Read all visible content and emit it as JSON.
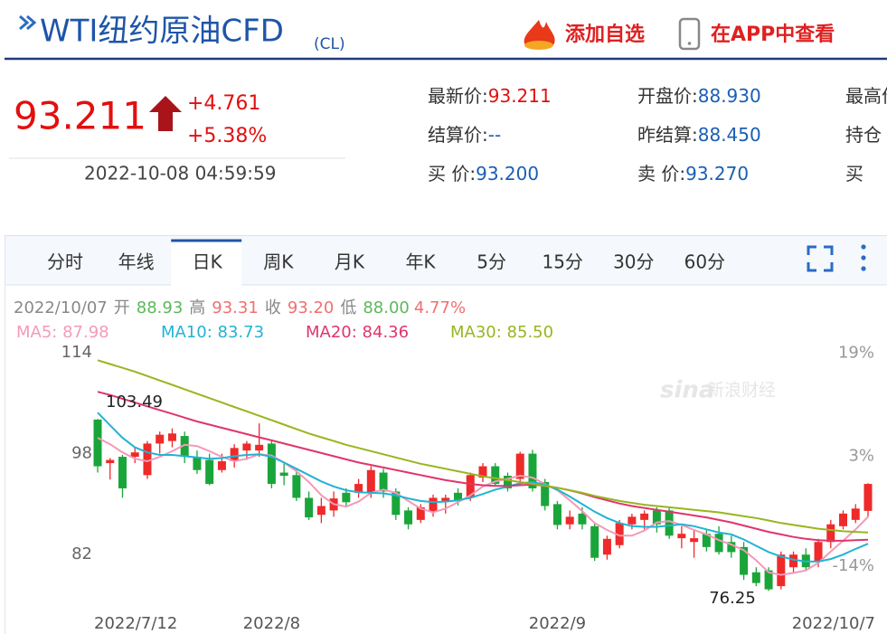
{
  "header": {
    "title": "WTI纽约原油CFD",
    "code": "(CL)",
    "add_watchlist": "添加自选",
    "view_in_app": "在APP中查看"
  },
  "quote": {
    "price": "93.211",
    "change": "+4.761",
    "change_pct": "+5.38%",
    "time": "2022-10-08 04:59:59",
    "fields": [
      [
        {
          "label": "最新价:",
          "value": "93.211"
        },
        {
          "label": "开盘价:",
          "value": "88.930"
        },
        {
          "label": "最高价"
        }
      ],
      [
        {
          "label": "结算价:",
          "value": "--"
        },
        {
          "label": "昨结算:",
          "value": "88.450"
        },
        {
          "label": "持仓"
        }
      ],
      [
        {
          "label": "买  价:",
          "value": "93.200"
        },
        {
          "label": "卖  价:",
          "value": "93.270"
        },
        {
          "label": "买"
        }
      ]
    ]
  },
  "tabs": [
    {
      "label": "分时",
      "selected": false
    },
    {
      "label": "年线",
      "selected": false
    },
    {
      "label": "日K",
      "selected": true
    },
    {
      "label": "周K",
      "selected": false
    },
    {
      "label": "月K",
      "selected": false
    },
    {
      "label": "年K",
      "selected": false
    },
    {
      "label": "5分",
      "selected": false
    },
    {
      "label": "15分",
      "selected": false
    },
    {
      "label": "30分",
      "selected": false
    },
    {
      "label": "60分",
      "selected": false
    }
  ],
  "chart_data": {
    "type": "candlestick",
    "info": {
      "date": "2022/10/07",
      "items": [
        {
          "label": "开",
          "value": "88.93",
          "color": "#5cb85c"
        },
        {
          "label": "高",
          "value": "93.31",
          "color": "#f07070"
        },
        {
          "label": "收",
          "value": "93.20",
          "color": "#f07070"
        },
        {
          "label": "低",
          "value": "88.00",
          "color": "#5cb85c"
        }
      ],
      "change_pct": "4.77%",
      "change_color": "#f07070"
    },
    "watermark": [
      "sina",
      "新浪财经"
    ],
    "ylim": [
      72,
      116
    ],
    "yticks": [
      114,
      98,
      82
    ],
    "y2lim": [
      -22,
      21
    ],
    "y2ticks": [
      {
        "value": 19,
        "label": "19%"
      },
      {
        "value": 3,
        "label": "3%"
      },
      {
        "value": -14,
        "label": "-14%"
      }
    ],
    "categories": [
      "2022/7/12",
      null,
      null,
      null,
      null,
      null,
      null,
      null,
      null,
      null,
      null,
      null,
      null,
      null,
      "2022/8",
      null,
      null,
      null,
      null,
      null,
      null,
      null,
      null,
      null,
      null,
      null,
      null,
      null,
      null,
      null,
      null,
      null,
      null,
      null,
      null,
      null,
      null,
      "2022/9",
      null,
      null,
      null,
      null,
      null,
      null,
      null,
      null,
      null,
      null,
      null,
      null,
      null,
      null,
      null,
      null,
      null,
      null,
      null,
      null,
      null,
      null,
      null,
      null,
      "2022/10/7"
    ],
    "up_color": "#ee2a2a",
    "down_color": "#1aa53a",
    "open": [
      103.4,
      96.5,
      97.5,
      97.5,
      94.6,
      99.6,
      100,
      100.8,
      97.5,
      97,
      95.4,
      96.8,
      98.5,
      98.5,
      99.6,
      95,
      94.6,
      91,
      88.3,
      89,
      91.8,
      91.8,
      91.8,
      95,
      92,
      89,
      87.5,
      88.8,
      90.5,
      91.8,
      91,
      94.2,
      96,
      94.5,
      94,
      98,
      93.5,
      90,
      86.8,
      88.5,
      86.5,
      82,
      83.5,
      86.8,
      87.5,
      89,
      89,
      84.6,
      84,
      85.3,
      85.3,
      84,
      83.2,
      79.2,
      79.5,
      77,
      80,
      82,
      81,
      84,
      86.5,
      87.5,
      88.93
    ],
    "high": [
      103.49,
      97.3,
      97.8,
      99,
      100,
      101.5,
      102,
      101.5,
      98.5,
      98,
      98,
      99.5,
      100,
      102.8,
      100,
      96.5,
      95.5,
      92,
      91,
      92,
      92.5,
      94,
      96,
      95.6,
      92.5,
      89.5,
      90,
      91.5,
      91.5,
      92.5,
      95,
      96.5,
      96.5,
      95,
      98.3,
      98.6,
      94,
      90.5,
      89,
      89.5,
      87,
      85,
      87.5,
      88.5,
      89,
      89.5,
      89.5,
      86.5,
      86,
      86,
      86.5,
      85,
      84,
      80,
      80,
      82.5,
      82.5,
      83,
      84.5,
      87.5,
      89,
      90,
      93.31
    ],
    "low": [
      95,
      93.9,
      91,
      96.5,
      94,
      98,
      99,
      96.5,
      94.8,
      93,
      95,
      95.8,
      97,
      97.5,
      92.5,
      93,
      90.5,
      87.5,
      87,
      88,
      89.5,
      91,
      91,
      91,
      87.5,
      86,
      87,
      88,
      88.5,
      89.8,
      90.5,
      93.5,
      92.8,
      92,
      93,
      92,
      89,
      86,
      86,
      86,
      81,
      81.2,
      83,
      86,
      86,
      85.5,
      84.5,
      83,
      81.5,
      82.5,
      82,
      81.5,
      78,
      77,
      76.25,
      76.5,
      79,
      79.5,
      80,
      83,
      86,
      87,
      88
    ],
    "close": [
      96,
      97,
      92.5,
      98.2,
      99.6,
      101,
      101.2,
      97.5,
      95.4,
      93.2,
      96.8,
      98.9,
      99.6,
      99.4,
      93.2,
      94.5,
      91,
      87.9,
      89.7,
      90.9,
      90.3,
      93.2,
      95.4,
      92,
      88.3,
      86.8,
      89.5,
      91,
      91,
      90.6,
      94.6,
      96,
      93.2,
      92.5,
      98,
      92.5,
      89.7,
      86.7,
      88,
      86.8,
      81.5,
      84.5,
      87,
      88,
      88.5,
      86.8,
      85,
      85.3,
      84.6,
      83.2,
      82.4,
      82.4,
      78.8,
      77.5,
      76.5,
      82,
      82,
      80,
      84,
      86.8,
      88.5,
      89.3,
      93.2
    ],
    "series": [
      {
        "label": "MA5: 87.98",
        "color": "#f39ab8",
        "values": [
          100.5,
          99.5,
          98.2,
          97.2,
          96.8,
          97.5,
          98.4,
          99.4,
          99.2,
          98.4,
          97.5,
          96.8,
          97.2,
          97.9,
          97.7,
          96.6,
          95.2,
          93.5,
          91.4,
          90,
          89.6,
          90.4,
          91.8,
          92.3,
          91.8,
          90.5,
          89.3,
          88.7,
          89.3,
          90.3,
          91.4,
          92.8,
          93.6,
          94,
          94.5,
          94.2,
          93.2,
          92.2,
          90.6,
          88.9,
          87,
          85.9,
          85,
          85,
          85.8,
          87.1,
          87.3,
          86.7,
          85.9,
          85.2,
          84.3,
          83.6,
          82.7,
          81.1,
          79.2,
          78.8,
          79.1,
          79.5,
          80.7,
          82.5,
          84.2,
          86,
          87.98
        ]
      },
      {
        "label": "MA10: 83.73",
        "color": "#22b3d3",
        "values": [
          104.5,
          102.5,
          100.5,
          99,
          98.2,
          97.8,
          97.8,
          97.6,
          97.4,
          97.2,
          97.3,
          97.6,
          97.8,
          97.9,
          97.5,
          96.6,
          95.6,
          94.6,
          93.6,
          92.8,
          92.2,
          91.9,
          91.8,
          91.7,
          91.4,
          90.9,
          90.5,
          90.3,
          90.4,
          90.6,
          91,
          91.6,
          92.3,
          92.8,
          93.3,
          93.5,
          93.1,
          92.3,
          91.2,
          90,
          88.8,
          87.8,
          87,
          86.5,
          86.4,
          86.4,
          86.6,
          86.8,
          86.5,
          86,
          85.5,
          85.2,
          84.4,
          83.4,
          82.4,
          81.7,
          81.2,
          80.9,
          80.9,
          81.3,
          82,
          82.9,
          83.73
        ]
      },
      {
        "label": "MA20: 84.36",
        "color": "#e0356b",
        "values": [
          107.8,
          107.3,
          106.7,
          106.1,
          105.5,
          104.9,
          104.3,
          103.7,
          103.1,
          102.6,
          102.1,
          101.6,
          101.1,
          100.6,
          100.1,
          99.6,
          99.1,
          98.6,
          98.1,
          97.6,
          97.1,
          96.6,
          96.2,
          95.8,
          95.4,
          95,
          94.6,
          94.2,
          93.8,
          93.5,
          93.2,
          93,
          92.9,
          92.9,
          93,
          93.1,
          92.9,
          92.6,
          92.2,
          91.7,
          91.1,
          90.6,
          90.1,
          89.7,
          89.4,
          89.1,
          88.8,
          88.5,
          88.2,
          87.9,
          87.5,
          87.1,
          86.6,
          86.1,
          85.6,
          85.2,
          84.8,
          84.5,
          84.3,
          84.2,
          84.2,
          84.3,
          84.36
        ]
      },
      {
        "label": "MA30: 85.50",
        "color": "#97b61f",
        "values": [
          112.8,
          112.2,
          111.6,
          111,
          110.3,
          109.6,
          108.9,
          108.2,
          107.5,
          106.8,
          106.1,
          105.4,
          104.7,
          104,
          103.3,
          102.6,
          101.9,
          101.2,
          100.6,
          100,
          99.4,
          98.9,
          98.4,
          97.9,
          97.4,
          96.9,
          96.4,
          96,
          95.6,
          95.2,
          94.8,
          94.4,
          94.1,
          93.8,
          93.5,
          93.2,
          92.9,
          92.6,
          92.2,
          91.8,
          91.3,
          90.9,
          90.5,
          90.2,
          89.9,
          89.7,
          89.5,
          89.3,
          89.1,
          88.9,
          88.7,
          88.4,
          88.1,
          87.8,
          87.4,
          87,
          86.7,
          86.4,
          86.1,
          85.9,
          85.7,
          85.6,
          85.5
        ]
      }
    ],
    "annotations": [
      {
        "text": "103.49"
      },
      {
        "text": "76.25"
      }
    ]
  }
}
